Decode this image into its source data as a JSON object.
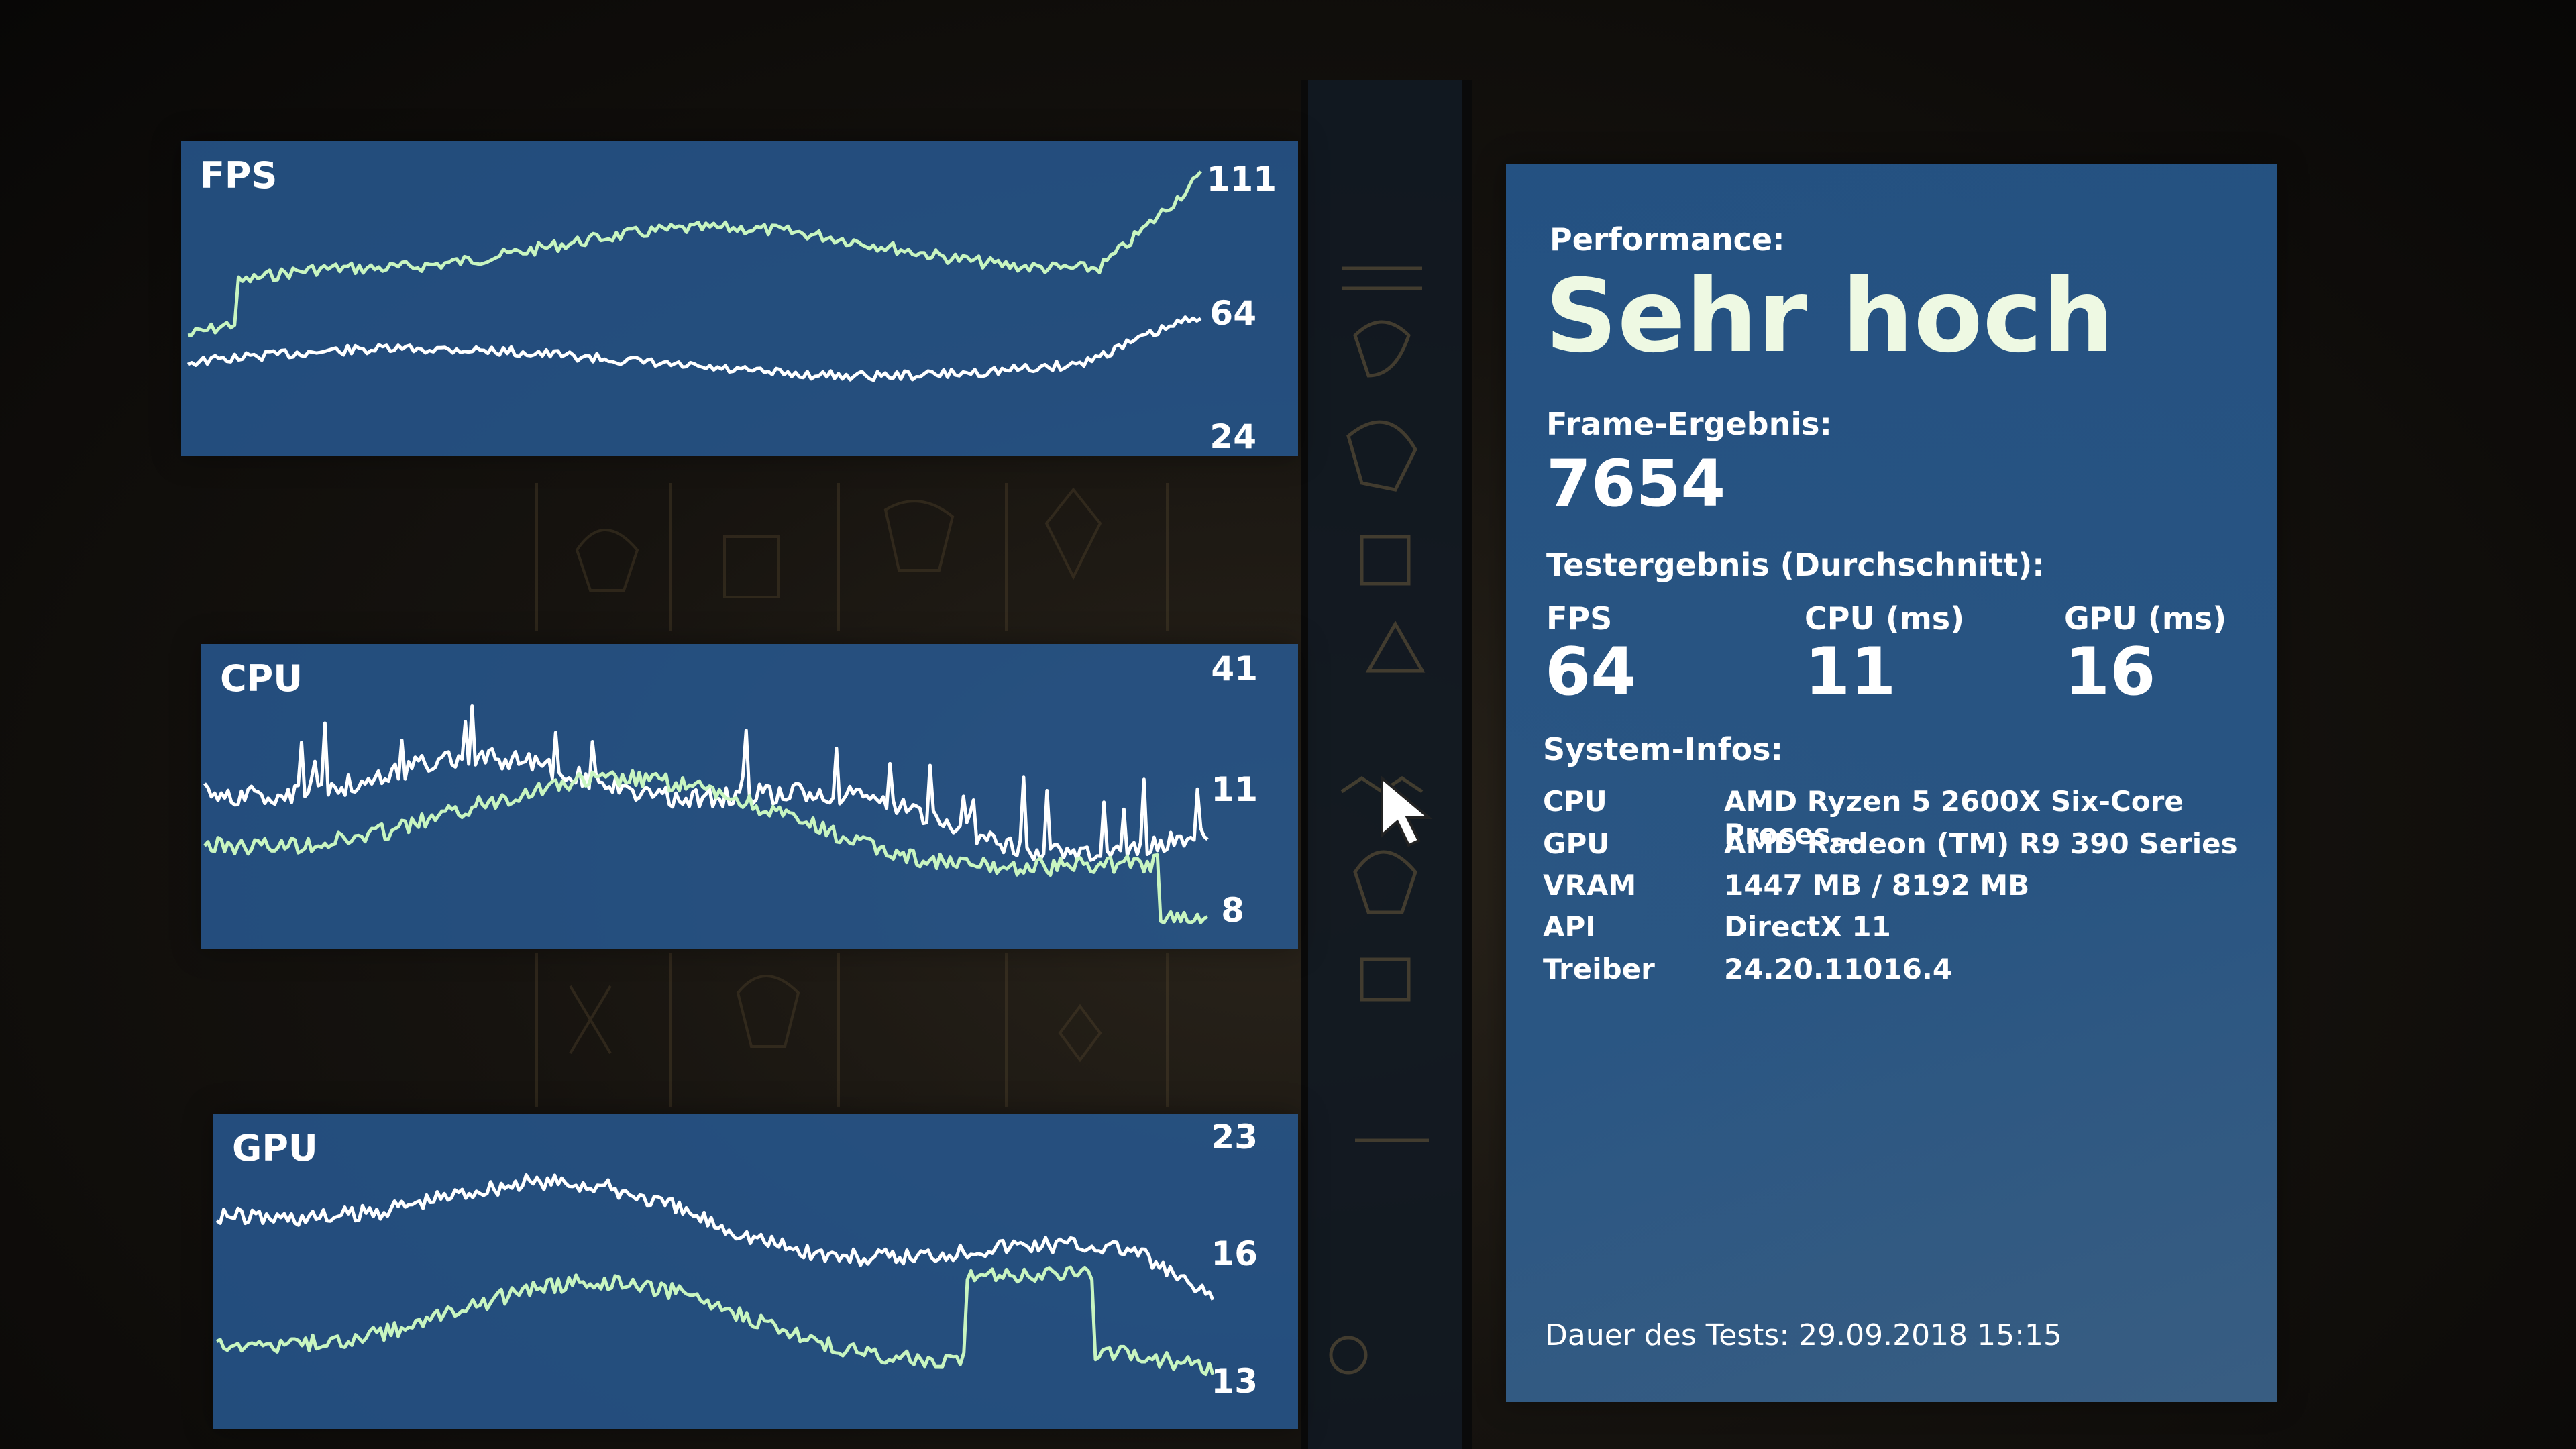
{
  "graphs": {
    "fps": {
      "title": "FPS",
      "max_label": "111",
      "avg_label": "64",
      "min_label": "24"
    },
    "cpu": {
      "title": "CPU",
      "max_label": "41",
      "avg_label": "11",
      "min_label": "8"
    },
    "gpu": {
      "title": "GPU",
      "max_label": "23",
      "avg_label": "16",
      "min_label": "13"
    }
  },
  "info": {
    "performance_label": "Performance:",
    "performance_value": "Sehr hoch",
    "frame_result_label": "Frame-Ergebnis:",
    "frame_result_value": "7654",
    "test_result_label": "Testergebnis (Durchschnitt):",
    "metrics": [
      {
        "label": "FPS",
        "value": "64"
      },
      {
        "label": "CPU (ms)",
        "value": "11"
      },
      {
        "label": "GPU (ms)",
        "value": "16"
      }
    ],
    "system_label": "System-Infos:",
    "system": [
      {
        "key": "CPU",
        "value": "AMD Ryzen 5 2600X Six-Core Proces..."
      },
      {
        "key": "GPU",
        "value": "AMD Radeon (TM) R9 390 Series"
      },
      {
        "key": "VRAM",
        "value": "1447 MB / 8192 MB"
      },
      {
        "key": "API",
        "value": "DirectX 11"
      },
      {
        "key": "Treiber",
        "value": "24.20.11016.4"
      }
    ],
    "footer": "Dauer des Tests: 29.09.2018 15:15"
  },
  "colors": {
    "panel": "#285c96",
    "series_green": "#c8f5c0",
    "series_white": "#ffffff",
    "headline": "#eef9e3"
  }
}
